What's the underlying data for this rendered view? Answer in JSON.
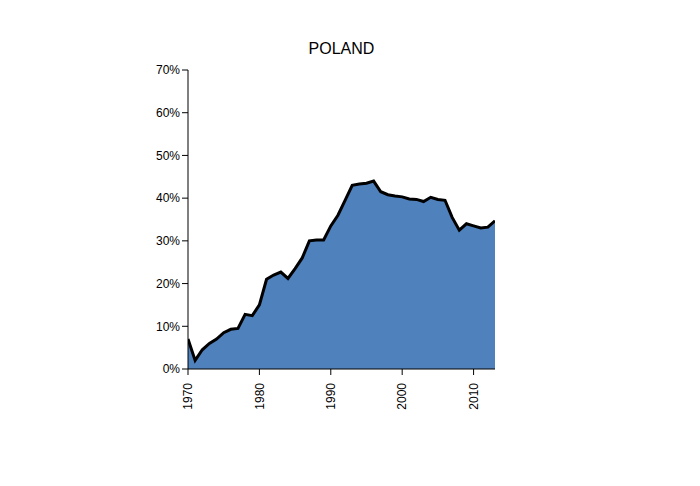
{
  "chart_data": {
    "type": "area",
    "title": "POLAND",
    "x": [
      1970,
      1971,
      1972,
      1973,
      1974,
      1975,
      1976,
      1977,
      1978,
      1979,
      1980,
      1981,
      1982,
      1983,
      1984,
      1985,
      1986,
      1987,
      1988,
      1989,
      1990,
      1991,
      1992,
      1993,
      1994,
      1995,
      1996,
      1997,
      1998,
      1999,
      2000,
      2001,
      2002,
      2003,
      2004,
      2005,
      2006,
      2007,
      2008,
      2009,
      2010,
      2011,
      2012,
      2013
    ],
    "values": [
      7,
      2,
      4.5,
      6,
      7,
      8.5,
      9.3,
      9.5,
      12.8,
      12.5,
      15,
      21,
      22,
      22.7,
      21.2,
      23.5,
      26,
      30,
      30.2,
      30.2,
      33.5,
      36,
      39.5,
      43,
      43.3,
      43.5,
      44,
      41.5,
      40.8,
      40.5,
      40.3,
      39.8,
      39.7,
      39.2,
      40.2,
      39.7,
      39.5,
      35.5,
      32.5,
      34,
      33.5,
      33,
      33.2,
      34.7
    ],
    "color": "#4f81bd",
    "xlim": [
      1970,
      2013
    ],
    "xticks": [
      1970,
      1980,
      1990,
      2000,
      2010
    ],
    "ylim": [
      0,
      70
    ],
    "yticks": [
      {
        "value": 0,
        "label": "0%"
      },
      {
        "value": 10,
        "label": "10%"
      },
      {
        "value": 20,
        "label": "20%"
      },
      {
        "value": 30,
        "label": "30%"
      },
      {
        "value": 40,
        "label": "40%"
      },
      {
        "value": 50,
        "label": "50%"
      },
      {
        "value": 60,
        "label": "60%"
      },
      {
        "value": 70,
        "label": "70%"
      }
    ],
    "grid": false
  }
}
